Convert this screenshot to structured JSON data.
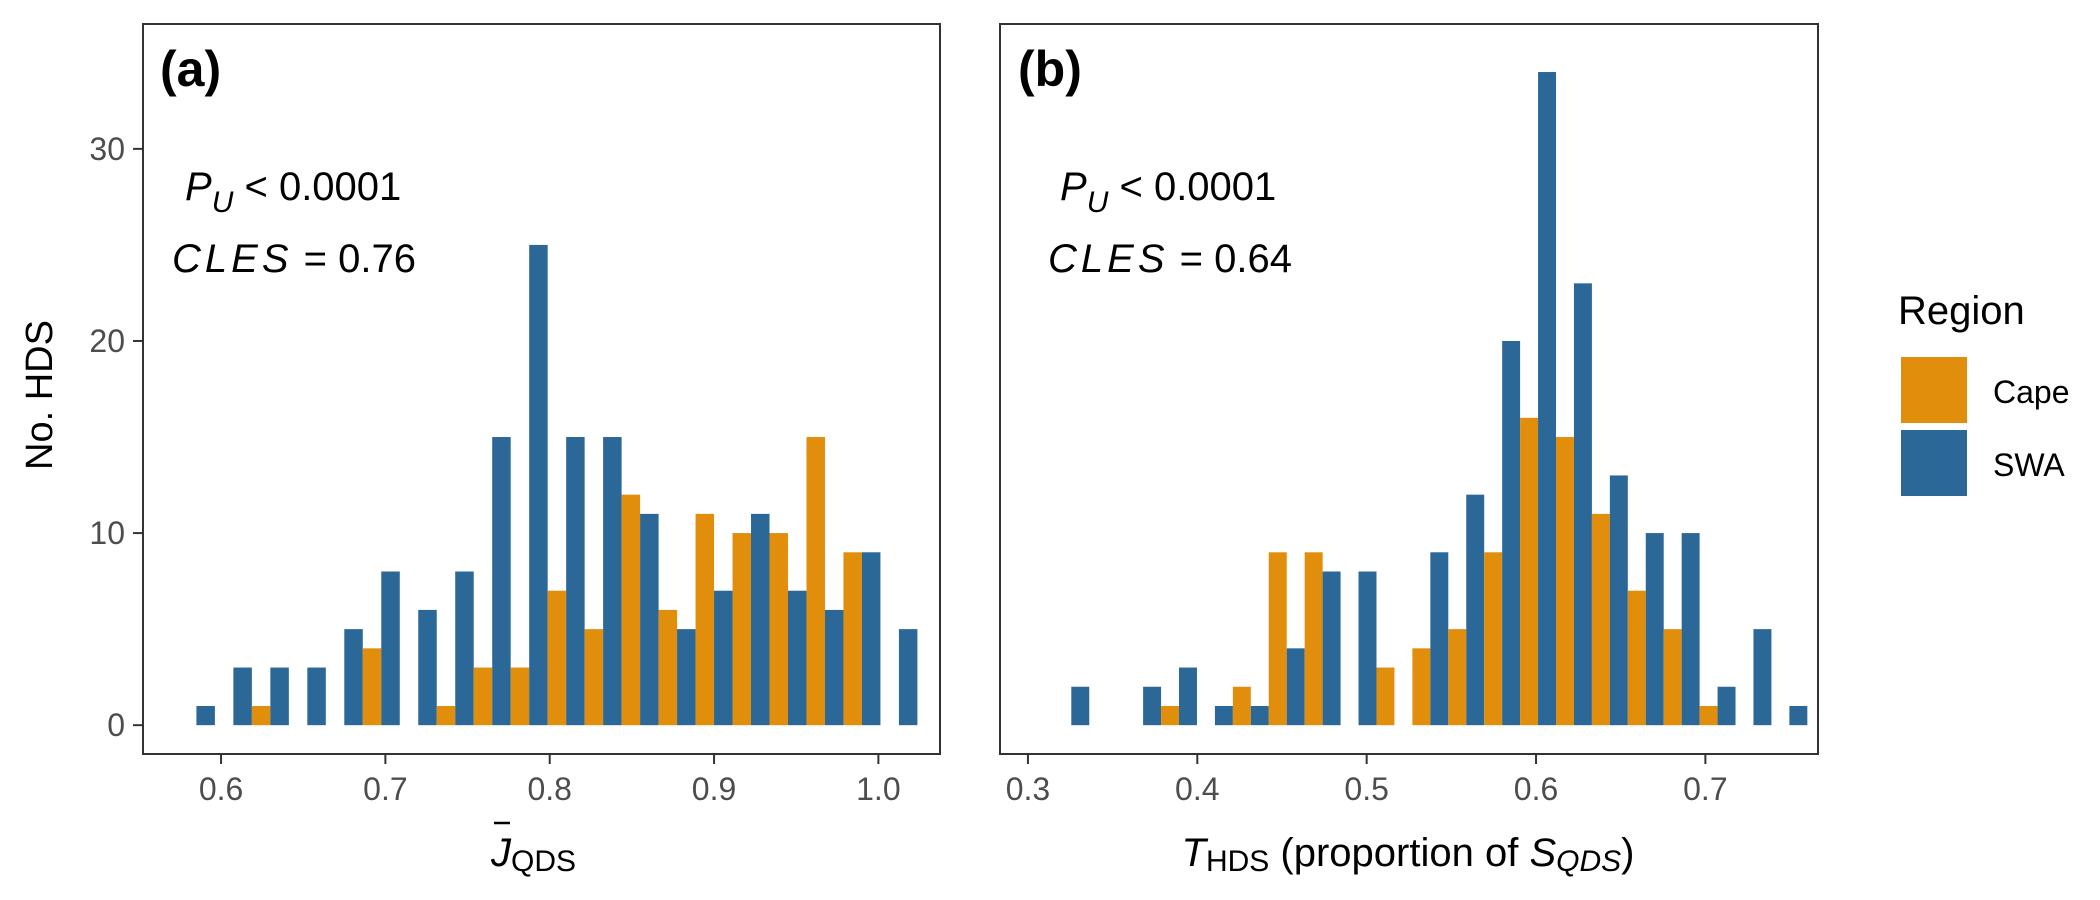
{
  "colors": {
    "cape": "#E08E0B",
    "swa": "#2B6797",
    "frame": "#333333",
    "tick_label": "#4D4D4D"
  },
  "legend": {
    "title": "Region",
    "items": [
      {
        "label": "Cape",
        "color": "#E08E0B"
      },
      {
        "label": "SWA",
        "color": "#2B6797"
      }
    ]
  },
  "y_axis_label": "No. HDS",
  "chart_data": [
    {
      "type": "bar",
      "panel_label": "(a)",
      "annotation": {
        "pu_sym": "P",
        "pu_sub": "U",
        "pu_text": " < 0.0001",
        "cles_sym": "CLES",
        "cles_text": " = 0.76"
      },
      "xlabel": {
        "sym": "J",
        "sub": "QDS"
      },
      "x_ticks": [
        0.6,
        0.7,
        0.8,
        0.9,
        1.0
      ],
      "x_tick_labels": [
        "0.6",
        "0.7",
        "0.8",
        "0.9",
        "1.0"
      ],
      "y_ticks": [
        0,
        10,
        20,
        30
      ],
      "y_tick_labels": [
        "0",
        "10",
        "20",
        "30"
      ],
      "xlim": [
        0.5525,
        1.0375
      ],
      "ylim": [
        -1.5,
        36.5
      ],
      "bin_width": 0.0225,
      "bin_centers": [
        0.585,
        0.6075,
        0.63,
        0.6525,
        0.675,
        0.6975,
        0.72,
        0.7425,
        0.765,
        0.7875,
        0.81,
        0.8325,
        0.855,
        0.8775,
        0.9,
        0.9225,
        0.945,
        0.9675,
        0.99,
        1.0125
      ],
      "series": [
        {
          "name": "Cape",
          "values": [
            0,
            0,
            1,
            0,
            0,
            4,
            0,
            1,
            3,
            3,
            7,
            5,
            12,
            6,
            11,
            10,
            10,
            15,
            9,
            0
          ]
        },
        {
          "name": "SWA",
          "values": [
            1,
            3,
            3,
            3,
            5,
            8,
            6,
            8,
            15,
            25,
            15,
            15,
            11,
            5,
            7,
            11,
            7,
            6,
            9,
            5
          ]
        }
      ],
      "legend_position": "right",
      "grid": false
    },
    {
      "type": "bar",
      "panel_label": "(b)",
      "annotation": {
        "pu_sym": "P",
        "pu_sub": "U",
        "pu_text": " < 0.0001",
        "cles_sym": "CLES",
        "cles_text": " = 0.64"
      },
      "xlabel": {
        "sym": "T",
        "sub": "HDS",
        "mid": " (proportion of ",
        "sym2": "S",
        "sub2": "QDS",
        "end": ")"
      },
      "x_ticks": [
        0.3,
        0.4,
        0.5,
        0.6,
        0.7
      ],
      "x_tick_labels": [
        "0.3",
        "0.4",
        "0.5",
        "0.6",
        "0.7"
      ],
      "y_ticks": [
        0,
        10,
        20,
        30
      ],
      "ylim": [
        -1.5,
        36.5
      ],
      "xlim": [
        0.2835,
        0.7665
      ],
      "bin_width": 0.0212,
      "bin_centers": [
        0.3256,
        0.3468,
        0.368,
        0.3892,
        0.4104,
        0.4316,
        0.4528,
        0.474,
        0.4952,
        0.5164,
        0.5376,
        0.5588,
        0.58,
        0.6012,
        0.6224,
        0.6436,
        0.6648,
        0.686,
        0.7072,
        0.7284,
        0.7496
      ],
      "series": [
        {
          "name": "Cape",
          "values": [
            0,
            0,
            0,
            1,
            0,
            2,
            9,
            9,
            0,
            3,
            4,
            5,
            9,
            16,
            15,
            11,
            7,
            5,
            1,
            0,
            0
          ]
        },
        {
          "name": "SWA",
          "values": [
            2,
            0,
            2,
            3,
            1,
            1,
            4,
            8,
            8,
            0,
            9,
            12,
            20,
            34,
            23,
            13,
            10,
            10,
            2,
            5,
            1
          ]
        }
      ],
      "legend_position": "right",
      "grid": false
    }
  ]
}
